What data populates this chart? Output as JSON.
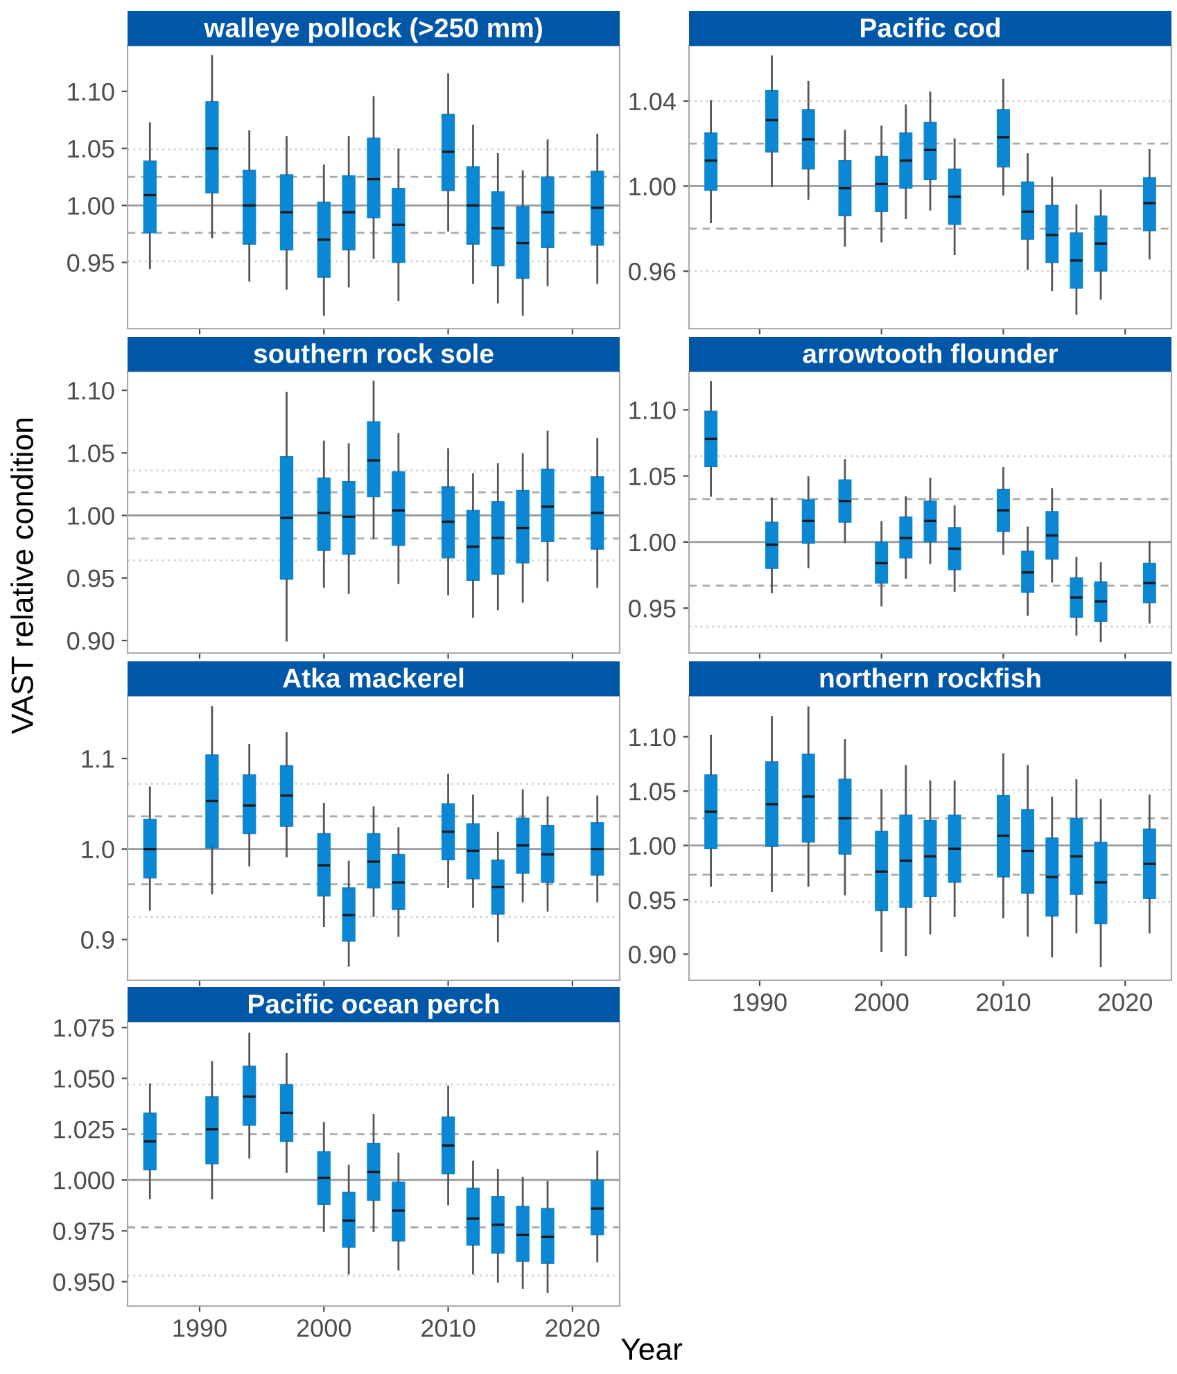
{
  "chart_data": [
    {
      "type": "box",
      "title": "walleye pollock (>250 mm)",
      "color": "#0b87d4",
      "x": [
        1986,
        1991,
        1994,
        1997,
        2000,
        2002,
        2004,
        2006,
        2010,
        2012,
        2014,
        2016,
        2018,
        2022
      ],
      "boxes": [
        {
          "low": 0.945,
          "q1": 0.976,
          "median": 1.009,
          "q3": 1.039,
          "high": 1.072
        },
        {
          "low": 0.972,
          "q1": 1.011,
          "median": 1.05,
          "q3": 1.091,
          "high": 1.131
        },
        {
          "low": 0.934,
          "q1": 0.966,
          "median": 1.0,
          "q3": 1.031,
          "high": 1.065
        },
        {
          "low": 0.927,
          "q1": 0.961,
          "median": 0.994,
          "q3": 1.027,
          "high": 1.06
        },
        {
          "low": 0.904,
          "q1": 0.937,
          "median": 0.97,
          "q3": 1.003,
          "high": 1.035
        },
        {
          "low": 0.929,
          "q1": 0.961,
          "median": 0.994,
          "q3": 1.026,
          "high": 1.06
        },
        {
          "low": 0.954,
          "q1": 0.989,
          "median": 1.023,
          "q3": 1.059,
          "high": 1.095
        },
        {
          "low": 0.917,
          "q1": 0.95,
          "median": 0.983,
          "q3": 1.015,
          "high": 1.049
        },
        {
          "low": 0.978,
          "q1": 1.013,
          "median": 1.047,
          "q3": 1.08,
          "high": 1.115
        },
        {
          "low": 0.932,
          "q1": 0.966,
          "median": 1.0,
          "q3": 1.034,
          "high": 1.07
        },
        {
          "low": 0.915,
          "q1": 0.947,
          "median": 0.98,
          "q3": 1.012,
          "high": 1.045
        },
        {
          "low": 0.904,
          "q1": 0.936,
          "median": 0.967,
          "q3": 0.999,
          "high": 1.03
        },
        {
          "low": 0.93,
          "q1": 0.963,
          "median": 0.994,
          "q3": 1.025,
          "high": 1.057
        },
        {
          "low": 0.932,
          "q1": 0.965,
          "median": 0.998,
          "q3": 1.03,
          "high": 1.062
        }
      ],
      "xlim": [
        1984.2,
        2023.8
      ],
      "xticks": [
        1990,
        2000,
        2010,
        2020
      ],
      "ylim": [
        0.892,
        1.14
      ],
      "yticks": [
        0.95,
        {
          "value": 1.0,
          "label": "1.00"
        },
        1.05,
        {
          "value": 1.1,
          "label": "1.10"
        }
      ],
      "tick_labels": "y",
      "grid": false,
      "ref_lines": [
        {
          "axis": "y",
          "value": 1.0,
          "color": "#9a9a9a",
          "line_style": "solid"
        },
        {
          "axis": "y",
          "value": 1.025,
          "color": "#aaaaaa",
          "line_style": "dashed"
        },
        {
          "axis": "y",
          "value": 0.976,
          "color": "#aaaaaa",
          "line_style": "dashed"
        },
        {
          "axis": "y",
          "value": 1.049,
          "color": "#d0d0d0",
          "line_style": "dotted"
        },
        {
          "axis": "y",
          "value": 0.951,
          "color": "#d0d0d0",
          "line_style": "dotted"
        }
      ]
    },
    {
      "type": "box",
      "title": "Pacific cod",
      "color": "#0b87d4",
      "x": [
        1986,
        1991,
        1994,
        1997,
        2000,
        2002,
        2004,
        2006,
        2010,
        2012,
        2014,
        2016,
        2018,
        2022
      ],
      "boxes": [
        {
          "low": 0.983,
          "q1": 0.998,
          "median": 1.012,
          "q3": 1.025,
          "high": 1.04
        },
        {
          "low": 1.0,
          "q1": 1.016,
          "median": 1.031,
          "q3": 1.045,
          "high": 1.061
        },
        {
          "low": 0.994,
          "q1": 1.008,
          "median": 1.022,
          "q3": 1.036,
          "high": 1.049
        },
        {
          "low": 0.972,
          "q1": 0.986,
          "median": 0.999,
          "q3": 1.012,
          "high": 1.026
        },
        {
          "low": 0.974,
          "q1": 0.988,
          "median": 1.001,
          "q3": 1.014,
          "high": 1.028
        },
        {
          "low": 0.985,
          "q1": 0.999,
          "median": 1.012,
          "q3": 1.025,
          "high": 1.038
        },
        {
          "low": 0.989,
          "q1": 1.003,
          "median": 1.017,
          "q3": 1.03,
          "high": 1.044
        },
        {
          "low": 0.968,
          "q1": 0.982,
          "median": 0.995,
          "q3": 1.008,
          "high": 1.022
        },
        {
          "low": 0.996,
          "q1": 1.009,
          "median": 1.023,
          "q3": 1.036,
          "high": 1.05
        },
        {
          "low": 0.961,
          "q1": 0.975,
          "median": 0.988,
          "q3": 1.002,
          "high": 1.015
        },
        {
          "low": 0.951,
          "q1": 0.964,
          "median": 0.977,
          "q3": 0.991,
          "high": 1.004
        },
        {
          "low": 0.94,
          "q1": 0.952,
          "median": 0.965,
          "q3": 0.978,
          "high": 0.991
        },
        {
          "low": 0.947,
          "q1": 0.96,
          "median": 0.973,
          "q3": 0.986,
          "high": 0.998
        },
        {
          "low": 0.966,
          "q1": 0.979,
          "median": 0.992,
          "q3": 1.004,
          "high": 1.017
        }
      ],
      "xlim": [
        1984.2,
        2023.8
      ],
      "xticks": [
        1990,
        2000,
        2010,
        2020
      ],
      "ylim": [
        0.933,
        1.066
      ],
      "yticks": [
        0.96,
        {
          "value": 1.0,
          "label": "1.00"
        },
        1.04
      ],
      "tick_labels": "y",
      "grid": false,
      "ref_lines": [
        {
          "axis": "y",
          "value": 1.0,
          "color": "#9a9a9a",
          "line_style": "solid"
        },
        {
          "axis": "y",
          "value": 1.02,
          "color": "#aaaaaa",
          "line_style": "dashed"
        },
        {
          "axis": "y",
          "value": 0.98,
          "color": "#aaaaaa",
          "line_style": "dashed"
        },
        {
          "axis": "y",
          "value": 1.04,
          "color": "#d0d0d0",
          "line_style": "dotted"
        },
        {
          "axis": "y",
          "value": 0.96,
          "color": "#d0d0d0",
          "line_style": "dotted"
        }
      ]
    },
    {
      "type": "box",
      "title": "southern rock sole",
      "ylabel": "VAST relative condition",
      "color": "#0b87d4",
      "x": [
        1997,
        2000,
        2002,
        2004,
        2006,
        2010,
        2012,
        2014,
        2016,
        2018,
        2022
      ],
      "boxes": [
        {
          "low": 0.9,
          "q1": 0.949,
          "median": 0.998,
          "q3": 1.047,
          "high": 1.098
        },
        {
          "low": 0.943,
          "q1": 0.972,
          "median": 1.002,
          "q3": 1.03,
          "high": 1.059
        },
        {
          "low": 0.938,
          "q1": 0.969,
          "median": 0.999,
          "q3": 1.027,
          "high": 1.057
        },
        {
          "low": 0.982,
          "q1": 1.015,
          "median": 1.044,
          "q3": 1.075,
          "high": 1.107
        },
        {
          "low": 0.946,
          "q1": 0.976,
          "median": 1.004,
          "q3": 1.035,
          "high": 1.065
        },
        {
          "low": 0.937,
          "q1": 0.966,
          "median": 0.995,
          "q3": 1.023,
          "high": 1.053
        },
        {
          "low": 0.919,
          "q1": 0.948,
          "median": 0.975,
          "q3": 1.004,
          "high": 1.033
        },
        {
          "low": 0.925,
          "q1": 0.953,
          "median": 0.982,
          "q3": 1.011,
          "high": 1.041
        },
        {
          "low": 0.931,
          "q1": 0.962,
          "median": 0.99,
          "q3": 1.02,
          "high": 1.049
        },
        {
          "low": 0.948,
          "q1": 0.979,
          "median": 1.007,
          "q3": 1.037,
          "high": 1.067
        },
        {
          "low": 0.943,
          "q1": 0.973,
          "median": 1.002,
          "q3": 1.031,
          "high": 1.061
        }
      ],
      "xlim": [
        1984.2,
        2023.8
      ],
      "xticks": [
        1990,
        2000,
        2010,
        2020
      ],
      "ylim": [
        0.89,
        1.115
      ],
      "yticks": [
        {
          "value": 0.9,
          "label": "0.90"
        },
        0.95,
        {
          "value": 1.0,
          "label": "1.00"
        },
        1.05,
        {
          "value": 1.1,
          "label": "1.10"
        }
      ],
      "tick_labels": "y",
      "grid": false,
      "ref_lines": [
        {
          "axis": "y",
          "value": 1.0,
          "color": "#9a9a9a",
          "line_style": "solid"
        },
        {
          "axis": "y",
          "value": 1.0185,
          "color": "#aaaaaa",
          "line_style": "dashed"
        },
        {
          "axis": "y",
          "value": 0.9815,
          "color": "#aaaaaa",
          "line_style": "dashed"
        },
        {
          "axis": "y",
          "value": 1.036,
          "color": "#d0d0d0",
          "line_style": "dotted"
        },
        {
          "axis": "y",
          "value": 0.964,
          "color": "#d0d0d0",
          "line_style": "dotted"
        }
      ]
    },
    {
      "type": "box",
      "title": "arrowtooth flounder",
      "color": "#0b87d4",
      "x": [
        1986,
        1991,
        1994,
        1997,
        2000,
        2002,
        2004,
        2006,
        2010,
        2012,
        2014,
        2016,
        2018,
        2022
      ],
      "boxes": [
        {
          "low": 1.035,
          "q1": 1.057,
          "median": 1.078,
          "q3": 1.099,
          "high": 1.121
        },
        {
          "low": 0.962,
          "q1": 0.98,
          "median": 0.998,
          "q3": 1.015,
          "high": 1.033
        },
        {
          "low": 0.981,
          "q1": 0.999,
          "median": 1.016,
          "q3": 1.032,
          "high": 1.049
        },
        {
          "low": 1.0,
          "q1": 1.015,
          "median": 1.031,
          "q3": 1.047,
          "high": 1.062
        },
        {
          "low": 0.952,
          "q1": 0.969,
          "median": 0.984,
          "q3": 1.0,
          "high": 1.015
        },
        {
          "low": 0.973,
          "q1": 0.988,
          "median": 1.003,
          "q3": 1.019,
          "high": 1.034
        },
        {
          "low": 0.984,
          "q1": 1.0,
          "median": 1.016,
          "q3": 1.031,
          "high": 1.048
        },
        {
          "low": 0.963,
          "q1": 0.979,
          "median": 0.995,
          "q3": 1.011,
          "high": 1.027
        },
        {
          "low": 0.991,
          "q1": 1.008,
          "median": 1.024,
          "q3": 1.04,
          "high": 1.056
        },
        {
          "low": 0.945,
          "q1": 0.962,
          "median": 0.977,
          "q3": 0.993,
          "high": 1.011
        },
        {
          "low": 0.97,
          "q1": 0.987,
          "median": 1.005,
          "q3": 1.023,
          "high": 1.04
        },
        {
          "low": 0.93,
          "q1": 0.943,
          "median": 0.958,
          "q3": 0.973,
          "high": 0.988
        },
        {
          "low": 0.925,
          "q1": 0.94,
          "median": 0.955,
          "q3": 0.97,
          "high": 0.984
        },
        {
          "low": 0.939,
          "q1": 0.954,
          "median": 0.969,
          "q3": 0.984,
          "high": 1.0
        }
      ],
      "xlim": [
        1984.2,
        2023.8
      ],
      "xticks": [
        1990,
        2000,
        2010,
        2020
      ],
      "ylim": [
        0.916,
        1.129
      ],
      "yticks": [
        0.95,
        {
          "value": 1.0,
          "label": "1.00"
        },
        1.05,
        {
          "value": 1.1,
          "label": "1.10"
        }
      ],
      "tick_labels": "y",
      "grid": false,
      "ref_lines": [
        {
          "axis": "y",
          "value": 1.0,
          "color": "#9a9a9a",
          "line_style": "solid"
        },
        {
          "axis": "y",
          "value": 1.0325,
          "color": "#aaaaaa",
          "line_style": "dashed"
        },
        {
          "axis": "y",
          "value": 0.967,
          "color": "#aaaaaa",
          "line_style": "dashed"
        },
        {
          "axis": "y",
          "value": 1.065,
          "color": "#d0d0d0",
          "line_style": "dotted"
        },
        {
          "axis": "y",
          "value": 0.936,
          "color": "#d0d0d0",
          "line_style": "dotted"
        }
      ]
    },
    {
      "type": "box",
      "title": "Atka mackerel",
      "color": "#0b87d4",
      "x": [
        1986,
        1991,
        1994,
        1997,
        2000,
        2002,
        2004,
        2006,
        2010,
        2012,
        2014,
        2016,
        2018,
        2022
      ],
      "boxes": [
        {
          "low": 0.933,
          "q1": 0.968,
          "median": 1.0,
          "q3": 1.033,
          "high": 1.068
        },
        {
          "low": 0.951,
          "q1": 1.001,
          "median": 1.053,
          "q3": 1.104,
          "high": 1.157
        },
        {
          "low": 0.982,
          "q1": 1.017,
          "median": 1.048,
          "q3": 1.082,
          "high": 1.115
        },
        {
          "low": 0.992,
          "q1": 1.025,
          "median": 1.059,
          "q3": 1.092,
          "high": 1.128
        },
        {
          "low": 0.915,
          "q1": 0.948,
          "median": 0.982,
          "q3": 1.017,
          "high": 1.05
        },
        {
          "low": 0.871,
          "q1": 0.898,
          "median": 0.927,
          "q3": 0.957,
          "high": 0.986
        },
        {
          "low": 0.926,
          "q1": 0.957,
          "median": 0.986,
          "q3": 1.017,
          "high": 1.046
        },
        {
          "low": 0.904,
          "q1": 0.933,
          "median": 0.963,
          "q3": 0.994,
          "high": 1.023
        },
        {
          "low": 0.958,
          "q1": 0.988,
          "median": 1.019,
          "q3": 1.05,
          "high": 1.082
        },
        {
          "low": 0.936,
          "q1": 0.967,
          "median": 0.998,
          "q3": 1.028,
          "high": 1.059
        },
        {
          "low": 0.898,
          "q1": 0.928,
          "median": 0.958,
          "q3": 0.988,
          "high": 1.018
        },
        {
          "low": 0.942,
          "q1": 0.973,
          "median": 1.004,
          "q3": 1.034,
          "high": 1.065
        },
        {
          "low": 0.932,
          "q1": 0.963,
          "median": 0.994,
          "q3": 1.026,
          "high": 1.057
        },
        {
          "low": 0.942,
          "q1": 0.971,
          "median": 1.0,
          "q3": 1.029,
          "high": 1.058
        }
      ],
      "xlim": [
        1984.2,
        2023.8
      ],
      "xticks": [
        1990,
        2000,
        2010,
        2020
      ],
      "ylim": [
        0.855,
        1.169
      ],
      "yticks": [
        0.9,
        {
          "value": 1.0,
          "label": "1.0"
        },
        1.1
      ],
      "tick_labels": "y",
      "grid": false,
      "ref_lines": [
        {
          "axis": "y",
          "value": 1.0,
          "color": "#9a9a9a",
          "line_style": "solid"
        },
        {
          "axis": "y",
          "value": 1.036,
          "color": "#aaaaaa",
          "line_style": "dashed"
        },
        {
          "axis": "y",
          "value": 0.961,
          "color": "#aaaaaa",
          "line_style": "dashed"
        },
        {
          "axis": "y",
          "value": 1.072,
          "color": "#d0d0d0",
          "line_style": "dotted"
        },
        {
          "axis": "y",
          "value": 0.925,
          "color": "#d0d0d0",
          "line_style": "dotted"
        }
      ]
    },
    {
      "type": "box",
      "title": "northern rockfish",
      "color": "#0b87d4",
      "x": [
        1986,
        1991,
        1994,
        1997,
        2000,
        2002,
        2004,
        2006,
        2010,
        2012,
        2014,
        2016,
        2018,
        2022
      ],
      "boxes": [
        {
          "low": 0.963,
          "q1": 0.997,
          "median": 1.031,
          "q3": 1.065,
          "high": 1.101
        },
        {
          "low": 0.958,
          "q1": 0.999,
          "median": 1.038,
          "q3": 1.077,
          "high": 1.118
        },
        {
          "low": 0.963,
          "q1": 1.003,
          "median": 1.045,
          "q3": 1.084,
          "high": 1.127
        },
        {
          "low": 0.955,
          "q1": 0.992,
          "median": 1.025,
          "q3": 1.061,
          "high": 1.097
        },
        {
          "low": 0.903,
          "q1": 0.94,
          "median": 0.976,
          "q3": 1.013,
          "high": 1.051
        },
        {
          "low": 0.899,
          "q1": 0.943,
          "median": 0.986,
          "q3": 1.028,
          "high": 1.073
        },
        {
          "low": 0.919,
          "q1": 0.953,
          "median": 0.99,
          "q3": 1.023,
          "high": 1.059
        },
        {
          "low": 0.935,
          "q1": 0.966,
          "median": 0.997,
          "q3": 1.028,
          "high": 1.059
        },
        {
          "low": 0.934,
          "q1": 0.971,
          "median": 1.009,
          "q3": 1.046,
          "high": 1.084
        },
        {
          "low": 0.917,
          "q1": 0.956,
          "median": 0.995,
          "q3": 1.033,
          "high": 1.073
        },
        {
          "low": 0.898,
          "q1": 0.935,
          "median": 0.971,
          "q3": 1.007,
          "high": 1.044
        },
        {
          "low": 0.92,
          "q1": 0.955,
          "median": 0.99,
          "q3": 1.025,
          "high": 1.06
        },
        {
          "low": 0.889,
          "q1": 0.928,
          "median": 0.966,
          "q3": 1.003,
          "high": 1.042
        },
        {
          "low": 0.92,
          "q1": 0.951,
          "median": 0.983,
          "q3": 1.015,
          "high": 1.046
        }
      ],
      "xlim": [
        1984.2,
        2023.8
      ],
      "xticks": [
        1990,
        2000,
        2010,
        2020
      ],
      "ylim": [
        0.876,
        1.1375
      ],
      "yticks": [
        {
          "value": 0.9,
          "label": "0.90"
        },
        0.95,
        {
          "value": 1.0,
          "label": "1.00"
        },
        1.05,
        {
          "value": 1.1,
          "label": "1.10"
        }
      ],
      "grid": false,
      "ref_lines": [
        {
          "axis": "y",
          "value": 1.0,
          "color": "#9a9a9a",
          "line_style": "solid"
        },
        {
          "axis": "y",
          "value": 1.025,
          "color": "#aaaaaa",
          "line_style": "dashed"
        },
        {
          "axis": "y",
          "value": 0.973,
          "color": "#aaaaaa",
          "line_style": "dashed"
        },
        {
          "axis": "y",
          "value": 1.051,
          "color": "#d0d0d0",
          "line_style": "dotted"
        },
        {
          "axis": "y",
          "value": 0.948,
          "color": "#d0d0d0",
          "line_style": "dotted"
        }
      ]
    },
    {
      "type": "box",
      "title": "Pacific ocean perch",
      "xlabel": "Year",
      "color": "#0b87d4",
      "x": [
        1986,
        1991,
        1994,
        1997,
        2000,
        2002,
        2004,
        2006,
        2010,
        2012,
        2014,
        2016,
        2018,
        2022
      ],
      "boxes": [
        {
          "low": 0.991,
          "q1": 1.005,
          "median": 1.019,
          "q3": 1.033,
          "high": 1.047
        },
        {
          "low": 0.991,
          "q1": 1.008,
          "median": 1.025,
          "q3": 1.041,
          "high": 1.058
        },
        {
          "low": 1.011,
          "q1": 1.027,
          "median": 1.041,
          "q3": 1.056,
          "high": 1.072
        },
        {
          "low": 1.004,
          "q1": 1.019,
          "median": 1.033,
          "q3": 1.047,
          "high": 1.062
        },
        {
          "low": 0.975,
          "q1": 0.988,
          "median": 1.001,
          "q3": 1.014,
          "high": 1.028
        },
        {
          "low": 0.954,
          "q1": 0.967,
          "median": 0.98,
          "q3": 0.994,
          "high": 1.007
        },
        {
          "low": 0.975,
          "q1": 0.99,
          "median": 1.004,
          "q3": 1.018,
          "high": 1.032
        },
        {
          "low": 0.956,
          "q1": 0.97,
          "median": 0.985,
          "q3": 0.999,
          "high": 1.013
        },
        {
          "low": 0.988,
          "q1": 1.003,
          "median": 1.017,
          "q3": 1.031,
          "high": 1.046
        },
        {
          "low": 0.954,
          "q1": 0.968,
          "median": 0.981,
          "q3": 0.996,
          "high": 1.009
        },
        {
          "low": 0.95,
          "q1": 0.964,
          "median": 0.978,
          "q3": 0.992,
          "high": 1.005
        },
        {
          "low": 0.947,
          "q1": 0.96,
          "median": 0.973,
          "q3": 0.987,
          "high": 1.001
        },
        {
          "low": 0.945,
          "q1": 0.959,
          "median": 0.972,
          "q3": 0.986,
          "high": 0.999
        },
        {
          "low": 0.96,
          "q1": 0.973,
          "median": 0.986,
          "q3": 1.0,
          "high": 1.014
        }
      ],
      "xlim": [
        1984.2,
        2023.8
      ],
      "xticks": [
        1990,
        2000,
        2010,
        2020
      ],
      "ylim": [
        0.938,
        1.0778
      ],
      "yticks": [
        {
          "value": 0.95,
          "label": "0.950"
        },
        {
          "value": 0.975,
          "label": "0.975"
        },
        {
          "value": 1.0,
          "label": "1.000"
        },
        {
          "value": 1.025,
          "label": "1.025"
        },
        {
          "value": 1.05,
          "label": "1.050"
        },
        {
          "value": 1.075,
          "label": "1.075"
        }
      ],
      "grid": false,
      "ref_lines": [
        {
          "axis": "y",
          "value": 1.0,
          "color": "#9a9a9a",
          "line_style": "solid"
        },
        {
          "axis": "y",
          "value": 1.0226,
          "color": "#aaaaaa",
          "line_style": "dashed"
        },
        {
          "axis": "y",
          "value": 0.9767,
          "color": "#aaaaaa",
          "line_style": "dashed"
        },
        {
          "axis": "y",
          "value": 1.047,
          "color": "#d0d0d0",
          "line_style": "dotted"
        },
        {
          "axis": "y",
          "value": 0.953,
          "color": "#d0d0d0",
          "line_style": "dotted"
        }
      ]
    }
  ]
}
